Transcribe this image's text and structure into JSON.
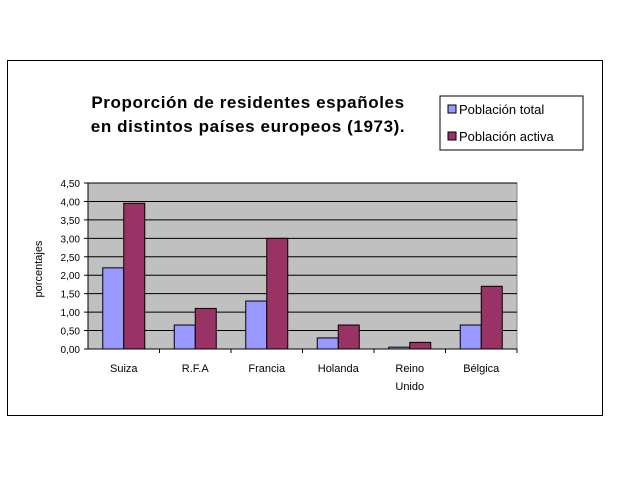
{
  "chart_data": {
    "type": "bar",
    "title_lines": [
      "Proporción de residentes españoles",
      "en distintos países europeos (1973)."
    ],
    "ylabel": "porcentajes",
    "xlabel": "",
    "categories": [
      [
        "Suiza"
      ],
      [
        "R.F.A"
      ],
      [
        "Francia"
      ],
      [
        "Holanda"
      ],
      [
        "Reino",
        "Unido"
      ],
      [
        "Bélgica"
      ]
    ],
    "series": [
      {
        "name": "Población total",
        "color": "#9999ff",
        "values": [
          2.2,
          0.65,
          1.3,
          0.3,
          0.05,
          0.65
        ]
      },
      {
        "name": "Población activa",
        "color": "#993366",
        "values": [
          3.95,
          1.1,
          3.0,
          0.65,
          0.18,
          1.7
        ]
      }
    ],
    "ylim": [
      0,
      4.5
    ],
    "yticks": [
      "0,00",
      "0,50",
      "1,00",
      "1,50",
      "2,00",
      "2,50",
      "3,00",
      "3,50",
      "4,00",
      "4,50"
    ],
    "ytick_values": [
      0,
      0.5,
      1,
      1.5,
      2,
      2.5,
      3,
      3.5,
      4,
      4.5
    ],
    "grid": true,
    "plot_background": "#c0c0c0",
    "legend_position": "top-right"
  }
}
